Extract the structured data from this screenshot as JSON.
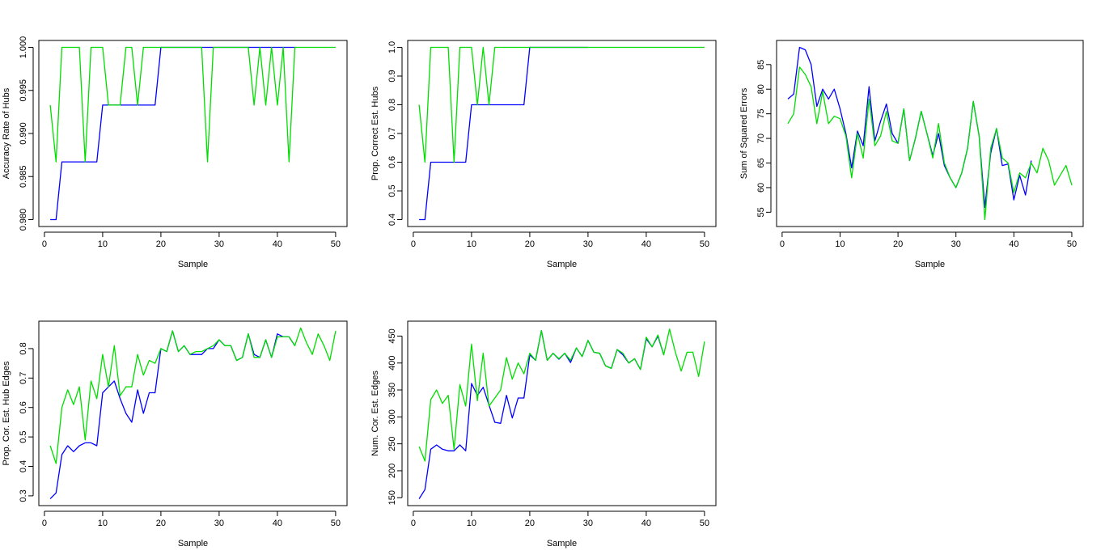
{
  "colors": {
    "series_blue": "#0000ff",
    "series_green": "#00dd00",
    "axis": "#000000"
  },
  "chart_data": [
    {
      "type": "line",
      "xlabel": "Sample",
      "ylabel": "Accuracy Rate of Hubs",
      "xlim": [
        1,
        50
      ],
      "ylim": [
        0.98,
        1.0
      ],
      "xticks": [
        0,
        10,
        20,
        30,
        40,
        50
      ],
      "yticks": [
        0.98,
        0.985,
        0.99,
        0.995,
        1.0
      ],
      "ytick_labels": [
        "0.980",
        "0.985",
        "0.990",
        "0.995",
        "1.000"
      ],
      "series": [
        {
          "color": "#0000ff",
          "x": [
            1,
            2,
            3,
            4,
            5,
            6,
            7,
            8,
            9,
            10,
            11,
            12,
            13,
            14,
            15,
            16,
            17,
            18,
            19,
            20,
            21,
            22,
            23,
            24,
            25,
            26,
            27,
            28,
            29,
            30,
            31,
            32,
            33,
            34,
            35,
            36,
            37,
            38,
            39,
            40,
            41,
            42,
            43
          ],
          "values": [
            0.98,
            0.98,
            0.9867,
            0.9867,
            0.9867,
            0.9867,
            0.9867,
            0.9867,
            0.9867,
            0.9933,
            0.9933,
            0.9933,
            0.9933,
            0.9933,
            0.9933,
            0.9933,
            0.9933,
            0.9933,
            0.9933,
            1,
            1,
            1,
            1,
            1,
            1,
            1,
            1,
            1,
            1,
            1,
            1,
            1,
            1,
            1,
            1,
            1,
            1,
            1,
            1,
            1,
            1,
            1,
            1
          ]
        },
        {
          "color": "#00dd00",
          "x": [
            1,
            2,
            3,
            4,
            5,
            6,
            7,
            8,
            9,
            10,
            11,
            12,
            13,
            14,
            15,
            16,
            17,
            18,
            19,
            20,
            21,
            22,
            23,
            24,
            25,
            26,
            27,
            28,
            29,
            30,
            31,
            32,
            33,
            34,
            35,
            36,
            37,
            38,
            39,
            40,
            41,
            42,
            43,
            44,
            45,
            46,
            47,
            48,
            49,
            50
          ],
          "values": [
            0.9933,
            0.9867,
            1,
            1,
            1,
            1,
            0.9867,
            1,
            1,
            1,
            0.9933,
            0.9933,
            0.9933,
            1,
            1,
            0.9933,
            1,
            1,
            1,
            1,
            1,
            1,
            1,
            1,
            1,
            1,
            1,
            0.9867,
            1,
            1,
            1,
            1,
            1,
            1,
            1,
            0.9933,
            1,
            0.9933,
            1,
            0.9933,
            1,
            0.9867,
            1,
            1,
            1,
            1,
            1,
            1,
            1,
            1
          ]
        }
      ]
    },
    {
      "type": "line",
      "xlabel": "Sample",
      "ylabel": "Prop. Correct Est. Hubs",
      "xlim": [
        1,
        50
      ],
      "ylim": [
        0.4,
        1.0
      ],
      "xticks": [
        0,
        10,
        20,
        30,
        40,
        50
      ],
      "yticks": [
        0.4,
        0.5,
        0.6,
        0.7,
        0.8,
        0.9,
        1.0
      ],
      "ytick_labels": [
        "0.4",
        "0.5",
        "0.6",
        "0.7",
        "0.8",
        "0.9",
        "1.0"
      ],
      "series": [
        {
          "color": "#0000ff",
          "x": [
            1,
            2,
            3,
            4,
            5,
            6,
            7,
            8,
            9,
            10,
            11,
            12,
            13,
            14,
            15,
            16,
            17,
            18,
            19,
            20,
            21,
            22,
            23,
            24,
            25,
            26,
            27,
            28,
            29,
            30
          ],
          "values": [
            0.4,
            0.4,
            0.6,
            0.6,
            0.6,
            0.6,
            0.6,
            0.6,
            0.6,
            0.8,
            0.8,
            0.8,
            0.8,
            0.8,
            0.8,
            0.8,
            0.8,
            0.8,
            0.8,
            1,
            1,
            1,
            1,
            1,
            1,
            1,
            1,
            1,
            1,
            1
          ]
        },
        {
          "color": "#00dd00",
          "x": [
            1,
            2,
            3,
            4,
            5,
            6,
            7,
            8,
            9,
            10,
            11,
            12,
            13,
            14,
            15,
            16,
            17,
            18,
            19,
            20,
            21,
            22,
            23,
            24,
            25,
            26,
            27,
            28,
            29,
            30,
            31,
            32,
            33,
            34,
            35,
            36,
            37,
            38,
            39,
            40,
            41,
            42,
            43,
            44,
            45,
            46,
            47,
            48,
            49,
            50
          ],
          "values": [
            0.8,
            0.6,
            1,
            1,
            1,
            1,
            0.6,
            1,
            1,
            1,
            0.8,
            1,
            0.8,
            1,
            1,
            1,
            1,
            1,
            1,
            1,
            1,
            1,
            1,
            1,
            1,
            1,
            1,
            1,
            1,
            1,
            1,
            1,
            1,
            1,
            1,
            1,
            1,
            1,
            1,
            1,
            1,
            1,
            1,
            1,
            1,
            1,
            1,
            1,
            1,
            1
          ]
        }
      ]
    },
    {
      "type": "line",
      "xlabel": "Sample",
      "ylabel": "Sum of Squared Errors",
      "xlim": [
        1,
        50
      ],
      "ylim": [
        53.5,
        88.5
      ],
      "xticks": [
        0,
        10,
        20,
        30,
        40,
        50
      ],
      "yticks": [
        55,
        60,
        65,
        70,
        75,
        80,
        85
      ],
      "ytick_labels": [
        "55",
        "60",
        "65",
        "70",
        "75",
        "80",
        "85"
      ],
      "series": [
        {
          "color": "#0000ff",
          "x": [
            1,
            2,
            3,
            4,
            5,
            6,
            7,
            8,
            9,
            10,
            11,
            12,
            13,
            14,
            15,
            16,
            17,
            18,
            19,
            20,
            21,
            22,
            23,
            24,
            25,
            26,
            27,
            28,
            29,
            30,
            31,
            32,
            33,
            34,
            35,
            36,
            37,
            38,
            39,
            40,
            41,
            42,
            43
          ],
          "values": [
            78,
            79,
            88.5,
            88,
            85,
            76.5,
            80,
            78,
            80,
            76,
            71,
            64,
            71.5,
            68.5,
            80.5,
            69.5,
            73.5,
            77,
            71,
            69,
            76,
            65.5,
            70,
            75.5,
            71,
            66.5,
            71,
            64.5,
            62,
            60,
            63,
            68,
            77.5,
            70.5,
            56,
            67,
            72,
            64.5,
            64.8,
            57.5,
            62.5,
            58.5,
            65.5
          ]
        },
        {
          "color": "#00dd00",
          "x": [
            1,
            2,
            3,
            4,
            5,
            6,
            7,
            8,
            9,
            10,
            11,
            12,
            13,
            14,
            15,
            16,
            17,
            18,
            19,
            20,
            21,
            22,
            23,
            24,
            25,
            26,
            27,
            28,
            29,
            30,
            31,
            32,
            33,
            34,
            35,
            36,
            37,
            38,
            39,
            40,
            41,
            42,
            43,
            44,
            45,
            46,
            47,
            48,
            49,
            50
          ],
          "values": [
            73,
            75,
            84.5,
            83,
            80.5,
            73,
            79.5,
            73,
            74.5,
            74,
            70.5,
            62,
            71,
            66,
            78,
            68.5,
            70.5,
            75.5,
            69.5,
            69,
            76,
            65.5,
            70,
            75.5,
            71,
            66,
            73,
            65,
            62,
            60,
            63,
            68,
            77.5,
            70.5,
            53.5,
            68,
            72,
            66,
            65,
            59,
            63,
            62,
            65,
            63,
            68,
            65.5,
            60.5,
            62.5,
            64.5,
            60.5
          ]
        }
      ]
    },
    {
      "type": "line",
      "xlabel": "Sample",
      "ylabel": "Prop. Cor. Est. Hub Edges",
      "xlim": [
        1,
        50
      ],
      "ylim": [
        0.29,
        0.87
      ],
      "xticks": [
        0,
        10,
        20,
        30,
        40,
        50
      ],
      "yticks": [
        0.3,
        0.4,
        0.5,
        0.6,
        0.7,
        0.8
      ],
      "ytick_labels": [
        "0.3",
        "0.4",
        "0.5",
        "0.6",
        "0.7",
        "0.8"
      ],
      "series": [
        {
          "color": "#0000ff",
          "x": [
            1,
            2,
            3,
            4,
            5,
            6,
            7,
            8,
            9,
            10,
            11,
            12,
            13,
            14,
            15,
            16,
            17,
            18,
            19,
            20,
            21,
            22,
            23,
            24,
            25,
            26,
            27,
            28,
            29,
            30,
            31,
            32,
            33,
            34,
            35,
            36,
            37,
            38,
            39,
            40,
            41,
            42,
            43
          ],
          "values": [
            0.29,
            0.31,
            0.44,
            0.47,
            0.45,
            0.47,
            0.48,
            0.48,
            0.47,
            0.65,
            0.67,
            0.69,
            0.63,
            0.58,
            0.55,
            0.66,
            0.58,
            0.65,
            0.65,
            0.8,
            0.79,
            0.86,
            0.79,
            0.81,
            0.78,
            0.78,
            0.78,
            0.8,
            0.8,
            0.83,
            0.81,
            0.81,
            0.76,
            0.77,
            0.85,
            0.78,
            0.77,
            0.83,
            0.77,
            0.85,
            0.84,
            0.84,
            0.81
          ]
        },
        {
          "color": "#00dd00",
          "x": [
            1,
            2,
            3,
            4,
            5,
            6,
            7,
            8,
            9,
            10,
            11,
            12,
            13,
            14,
            15,
            16,
            17,
            18,
            19,
            20,
            21,
            22,
            23,
            24,
            25,
            26,
            27,
            28,
            29,
            30,
            31,
            32,
            33,
            34,
            35,
            36,
            37,
            38,
            39,
            40,
            41,
            42,
            43,
            44,
            45,
            46,
            47,
            48,
            49,
            50
          ],
          "values": [
            0.47,
            0.41,
            0.6,
            0.66,
            0.61,
            0.67,
            0.49,
            0.69,
            0.63,
            0.78,
            0.67,
            0.81,
            0.64,
            0.67,
            0.67,
            0.78,
            0.71,
            0.76,
            0.75,
            0.8,
            0.79,
            0.86,
            0.79,
            0.81,
            0.78,
            0.79,
            0.79,
            0.8,
            0.81,
            0.83,
            0.81,
            0.81,
            0.76,
            0.77,
            0.85,
            0.77,
            0.77,
            0.83,
            0.77,
            0.84,
            0.84,
            0.84,
            0.81,
            0.87,
            0.82,
            0.78,
            0.85,
            0.81,
            0.76,
            0.86
          ]
        }
      ]
    },
    {
      "type": "line",
      "xlabel": "Sample",
      "ylabel": "Num. Cor. Est. Edges",
      "xlim": [
        1,
        50
      ],
      "ylim": [
        148,
        465
      ],
      "xticks": [
        0,
        10,
        20,
        30,
        40,
        50
      ],
      "yticks": [
        150,
        200,
        250,
        300,
        350,
        400,
        450
      ],
      "ytick_labels": [
        "150",
        "200",
        "250",
        "300",
        "350",
        "400",
        "450"
      ],
      "series": [
        {
          "color": "#0000ff",
          "x": [
            1,
            2,
            3,
            4,
            5,
            6,
            7,
            8,
            9,
            10,
            11,
            12,
            13,
            14,
            15,
            16,
            17,
            18,
            19,
            20,
            21,
            22,
            23,
            24,
            25,
            26,
            27,
            28,
            29,
            30,
            31,
            32,
            33,
            34,
            35,
            36,
            37,
            38,
            39,
            40,
            41,
            42,
            43
          ],
          "values": [
            148,
            165,
            240,
            248,
            240,
            237,
            237,
            248,
            237,
            362,
            340,
            355,
            322,
            290,
            288,
            340,
            298,
            335,
            335,
            415,
            405,
            460,
            405,
            418,
            407,
            418,
            401,
            428,
            412,
            442,
            420,
            418,
            395,
            390,
            425,
            415,
            400,
            408,
            388,
            445,
            430,
            450,
            415
          ]
        },
        {
          "color": "#00dd00",
          "x": [
            1,
            2,
            3,
            4,
            5,
            6,
            7,
            8,
            9,
            10,
            11,
            12,
            13,
            14,
            15,
            16,
            17,
            18,
            19,
            20,
            21,
            22,
            23,
            24,
            25,
            26,
            27,
            28,
            29,
            30,
            31,
            32,
            33,
            34,
            35,
            36,
            37,
            38,
            39,
            40,
            41,
            42,
            43,
            44,
            45,
            46,
            47,
            48,
            49,
            50
          ],
          "values": [
            245,
            218,
            332,
            350,
            325,
            340,
            240,
            360,
            320,
            435,
            330,
            418,
            320,
            335,
            350,
            410,
            370,
            400,
            380,
            418,
            405,
            460,
            405,
            418,
            408,
            418,
            405,
            428,
            412,
            442,
            420,
            418,
            395,
            390,
            425,
            418,
            400,
            408,
            388,
            448,
            430,
            452,
            415,
            463,
            420,
            385,
            420,
            420,
            375,
            440
          ]
        }
      ]
    }
  ]
}
